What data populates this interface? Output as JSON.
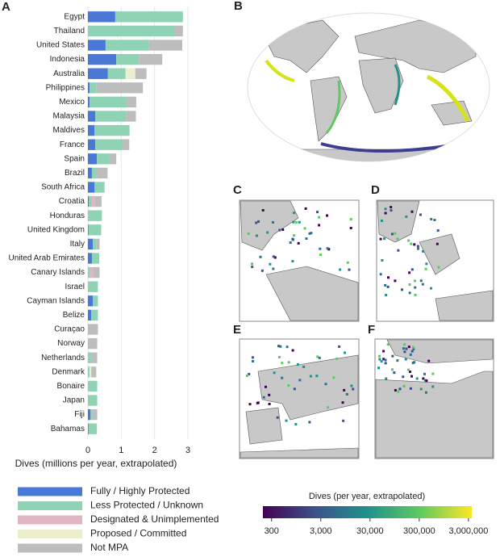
{
  "chart_data": {
    "type": "stacked-barh",
    "panel_label": "A",
    "xlabel": "Dives (millions per year, extrapolated)",
    "categories": [
      "Egypt",
      "Thailand",
      "United States",
      "Indonesia",
      "Australia",
      "Philippines",
      "Mexico",
      "Malaysia",
      "Maldives",
      "France",
      "Spain",
      "Brazil",
      "South Africa",
      "Croatia",
      "Honduras",
      "United Kingdom",
      "Italy",
      "United Arab Emirates",
      "Canary Islands",
      "Israel",
      "Cayman Islands",
      "Belize",
      "Curaçao",
      "Norway",
      "Netherlands",
      "Denmark",
      "Bonaire",
      "Japan",
      "Fiji",
      "Bahamas"
    ],
    "series": [
      {
        "name": "Fully / Highly Protected",
        "color": "#4a78d6",
        "values": [
          0.82,
          0,
          0.53,
          0.85,
          0.6,
          0.05,
          0.05,
          0.22,
          0.2,
          0.22,
          0.27,
          0.12,
          0.2,
          0.03,
          0,
          0.02,
          0.15,
          0.12,
          0,
          0,
          0.15,
          0.1,
          0,
          0,
          0,
          0,
          0,
          0,
          0.08,
          0.02
        ]
      },
      {
        "name": "Less Protected / Unknown",
        "color": "#8fd3b5",
        "values": [
          2.03,
          2.6,
          1.3,
          0.68,
          0.53,
          0.2,
          1.1,
          0.92,
          1.05,
          0.82,
          0.36,
          0.12,
          0.3,
          0.08,
          0.42,
          0.38,
          0.1,
          0.22,
          0.05,
          0.3,
          0.15,
          0.2,
          0,
          0,
          0.1,
          0.05,
          0.28,
          0.28,
          0.05,
          0.25
        ]
      },
      {
        "name": "Designated & Unimplemented",
        "color": "#e0b4c0",
        "values": [
          0,
          0,
          0,
          0,
          0,
          0,
          0,
          0,
          0,
          0,
          0,
          0,
          0,
          0.1,
          0,
          0,
          0,
          0,
          0.1,
          0,
          0,
          0,
          0,
          0,
          0,
          0,
          0,
          0,
          0,
          0
        ]
      },
      {
        "name": "Proposed / Committed",
        "color": "#ebefd0",
        "values": [
          0,
          0,
          0,
          0,
          0.29,
          0,
          0,
          0,
          0,
          0,
          0,
          0,
          0,
          0,
          0,
          0,
          0,
          0,
          0,
          0,
          0,
          0,
          0,
          0,
          0,
          0.05,
          0,
          0,
          0,
          0
        ]
      },
      {
        "name": "Not MPA",
        "color": "#bdbdbd",
        "values": [
          0,
          0.25,
          1.0,
          0.7,
          0.34,
          1.4,
          0.3,
          0.3,
          0,
          0.2,
          0.22,
          0.35,
          0,
          0.2,
          0,
          0,
          0.1,
          0,
          0.2,
          0,
          0,
          0,
          0.3,
          0.28,
          0.18,
          0.15,
          0,
          0,
          0.15,
          0
        ]
      }
    ],
    "xlim": [
      0,
      3
    ],
    "xticks": [
      0,
      1,
      2,
      3
    ],
    "grid": true
  },
  "maps": {
    "panels": [
      "B",
      "C",
      "D",
      "E",
      "F"
    ],
    "colorbar": {
      "label": "Dives (per year, extrapolated)",
      "scale": "log",
      "clim": [
        200,
        3500000
      ],
      "ticks": [
        300,
        {
          "value": 3000,
          "label": "3,000"
        },
        {
          "value": 30000,
          "label": "30,000"
        },
        {
          "value": 300000,
          "label": "300,000"
        },
        {
          "value": 3000000,
          "label": "3,000,000"
        }
      ]
    }
  }
}
